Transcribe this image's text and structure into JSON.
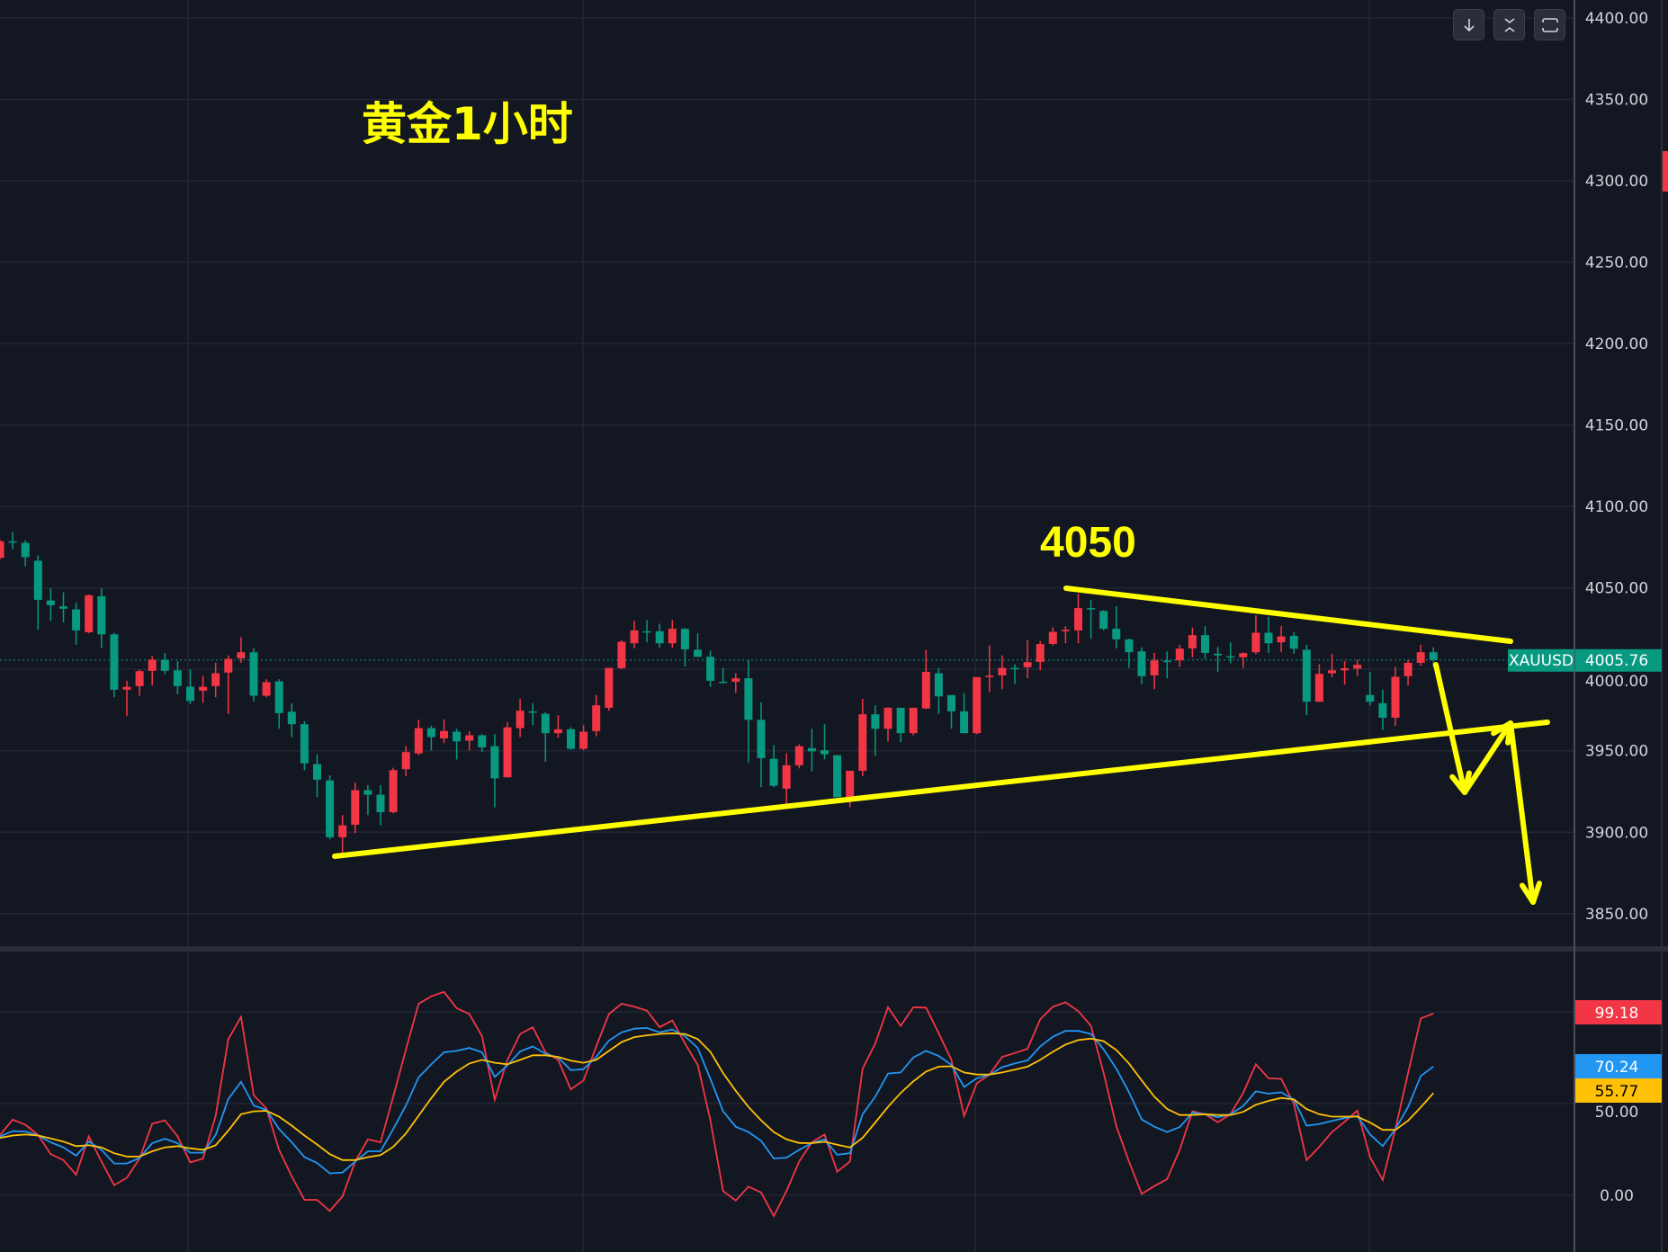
{
  "annotations": {
    "title": "黄金1小时",
    "level_label": "4050",
    "color": "#ffff00"
  },
  "toolbar": {
    "buttons": [
      {
        "icon": "arrow-down-icon"
      },
      {
        "icon": "collapse-vertical-icon"
      },
      {
        "icon": "fullscreen-icon"
      }
    ]
  },
  "colors": {
    "background": "#131722",
    "up": "#f23645",
    "down": "#089981",
    "grid": "#232733",
    "k_line": "#2196f3",
    "d_line": "#ffc107",
    "j_line": "#f23645"
  },
  "chart_data": [
    {
      "type": "candlestick",
      "symbol": "XAUUSD",
      "last_price": "4005.76",
      "ylim": [
        3830,
        4411
      ],
      "y_ticks": [
        "4400.00",
        "4350.00",
        "4300.00",
        "4250.00",
        "4200.00",
        "4150.00",
        "4100.00",
        "4050.00",
        "4000.00",
        "3950.00",
        "3900.00",
        "3850.00"
      ],
      "grid": true,
      "ohlc_fields": [
        "open",
        "high",
        "low",
        "close"
      ],
      "candles": [
        [
          4068.5,
          4079.6,
          4067.6,
          4078.6
        ],
        [
          4078.6,
          4084.2,
          4073.7,
          4078.0
        ],
        [
          4077.7,
          4079.2,
          4063.3,
          4068.9
        ],
        [
          4066.7,
          4070.0,
          4024.3,
          4042.7
        ],
        [
          4042.3,
          4049.7,
          4029.8,
          4039.4
        ],
        [
          4038.7,
          4047.3,
          4028.9,
          4037.2
        ],
        [
          4036.8,
          4040.9,
          4015.1,
          4023.9
        ],
        [
          4022.8,
          4046.0,
          4022.1,
          4045.5
        ],
        [
          4044.9,
          4049.7,
          4013.2,
          4021.5
        ],
        [
          4021.5,
          4022.5,
          3982.9,
          3987.5
        ],
        [
          3987.5,
          3993.0,
          3971.3,
          3989.3
        ],
        [
          3989.7,
          4000.0,
          3983.8,
          3998.9
        ],
        [
          3999.1,
          4008.1,
          3990.2,
          4005.9
        ],
        [
          4005.9,
          4009.9,
          3997.0,
          3999.1
        ],
        [
          3999.4,
          4005.0,
          3984.7,
          3989.7
        ],
        [
          3989.3,
          4000.0,
          3978.6,
          3980.6
        ],
        [
          3986.9,
          3996.1,
          3979.5,
          3989.3
        ],
        [
          3989.7,
          4004.0,
          3982.9,
          3997.6
        ],
        [
          3998.0,
          4008.6,
          3972.7,
          4006.4
        ],
        [
          4006.8,
          4019.7,
          4004.0,
          4010.5
        ],
        [
          4010.5,
          4012.9,
          3980.1,
          3983.8
        ],
        [
          3983.8,
          3993.9,
          3982.9,
          3992.1
        ],
        [
          3992.6,
          3993.9,
          3963.5,
          3973.1
        ],
        [
          3974.0,
          3979.2,
          3958.4,
          3966.3
        ],
        [
          3966.3,
          3968.1,
          3938.1,
          3942.3
        ],
        [
          3941.8,
          3947.9,
          3921.5,
          3932.2
        ],
        [
          3931.8,
          3935.0,
          3895.7,
          3896.9
        ],
        [
          3896.9,
          3910.5,
          3887.1,
          3904.2
        ],
        [
          3904.6,
          3930.4,
          3899.4,
          3925.8
        ],
        [
          3925.8,
          3928.9,
          3910.5,
          3923.0
        ],
        [
          3923.0,
          3928.9,
          3904.2,
          3912.3
        ],
        [
          3912.3,
          3939.6,
          3911.6,
          3938.1
        ],
        [
          3938.7,
          3952.8,
          3934.4,
          3949.2
        ],
        [
          3948.4,
          3969.0,
          3947.3,
          3963.9
        ],
        [
          3963.9,
          3965.4,
          3950.3,
          3958.4
        ],
        [
          3957.6,
          3969.4,
          3954.7,
          3962.1
        ],
        [
          3961.7,
          3963.5,
          3944.7,
          3955.8
        ],
        [
          3956.2,
          3962.1,
          3950.3,
          3959.5
        ],
        [
          3959.5,
          3960.2,
          3949.2,
          3952.1
        ],
        [
          3952.8,
          3960.2,
          3915.3,
          3933.1
        ],
        [
          3933.7,
          3967.6,
          3933.7,
          3964.4
        ],
        [
          3963.9,
          3981.9,
          3958.4,
          3974.6
        ],
        [
          3974.2,
          3979.2,
          3965.7,
          3973.5
        ],
        [
          3972.7,
          3973.7,
          3943.3,
          3960.8
        ],
        [
          3960.8,
          3971.8,
          3958.0,
          3963.2
        ],
        [
          3963.2,
          3964.4,
          3950.6,
          3951.2
        ],
        [
          3951.2,
          3965.7,
          3950.3,
          3961.7
        ],
        [
          3962.1,
          3984.2,
          3958.9,
          3977.9
        ],
        [
          3976.4,
          4000.9,
          3974.6,
          4000.9
        ],
        [
          4000.7,
          4017.9,
          4000.0,
          4016.9
        ],
        [
          4016.0,
          4029.8,
          4012.9,
          4023.9
        ],
        [
          4023.4,
          4030.2,
          4016.6,
          4022.8
        ],
        [
          4023.4,
          4028.0,
          4013.2,
          4016.0
        ],
        [
          4016.0,
          4030.2,
          4013.2,
          4024.9
        ],
        [
          4024.9,
          4025.2,
          4001.8,
          4012.3
        ],
        [
          4012.0,
          4022.1,
          4007.4,
          4007.7
        ],
        [
          4007.7,
          4011.4,
          3989.3,
          3993.0
        ],
        [
          3992.4,
          4000.7,
          3991.5,
          3991.7
        ],
        [
          3992.4,
          3997.6,
          3985.6,
          3994.5
        ],
        [
          3994.5,
          4005.5,
          3942.9,
          3969.0
        ],
        [
          3969.0,
          3979.7,
          3927.6,
          3945.5
        ],
        [
          3945.1,
          3953.4,
          3927.6,
          3928.5
        ],
        [
          3926.7,
          3948.4,
          3917.1,
          3941.1
        ],
        [
          3941.1,
          3953.9,
          3939.2,
          3952.8
        ],
        [
          3951.6,
          3963.5,
          3937.4,
          3949.7
        ],
        [
          3950.3,
          3966.3,
          3944.7,
          3947.9
        ],
        [
          3947.3,
          3947.3,
          3921.5,
          3921.5
        ],
        [
          3921.5,
          3937.7,
          3915.3,
          3937.7
        ],
        [
          3937.7,
          3981.9,
          3934.4,
          3972.4
        ],
        [
          3972.4,
          3977.9,
          3947.0,
          3963.5
        ],
        [
          3963.5,
          3976.8,
          3955.8,
          3976.4
        ],
        [
          3976.4,
          3976.4,
          3955.2,
          3960.8
        ],
        [
          3960.8,
          3976.4,
          3959.5,
          3976.4
        ],
        [
          3976.0,
          4011.8,
          3975.5,
          3998.5
        ],
        [
          3997.6,
          4000.7,
          3972.7,
          3983.4
        ],
        [
          3984.2,
          3984.2,
          3963.5,
          3974.2
        ],
        [
          3974.2,
          3985.3,
          3960.8,
          3960.8
        ],
        [
          3960.8,
          3995.2,
          3960.2,
          3995.2
        ],
        [
          3995.2,
          4014.7,
          3986.0,
          3996.1
        ],
        [
          3996.3,
          4008.6,
          3987.8,
          4000.9
        ],
        [
          4000.9,
          4003.1,
          3991.1,
          4000.5
        ],
        [
          4001.3,
          4017.9,
          3994.5,
          4004.4
        ],
        [
          4004.6,
          4017.3,
          3999.4,
          4015.5
        ],
        [
          4015.6,
          4025.8,
          4014.7,
          4023.0
        ],
        [
          4023.4,
          4026.5,
          4016.0,
          4024.3
        ],
        [
          4023.9,
          4046.4,
          4016.0,
          4037.6
        ],
        [
          4037.6,
          4042.7,
          4018.8,
          4036.8
        ],
        [
          4035.9,
          4036.3,
          4023.9,
          4024.9
        ],
        [
          4024.9,
          4038.7,
          4012.9,
          4018.4
        ],
        [
          4018.4,
          4018.8,
          4000.9,
          4010.5
        ],
        [
          4011.0,
          4013.6,
          3990.8,
          3995.8
        ],
        [
          3996.3,
          4010.1,
          3987.8,
          4005.5
        ],
        [
          4005.3,
          4011.0,
          3994.5,
          4004.8
        ],
        [
          4005.5,
          4015.1,
          4001.6,
          4012.7
        ],
        [
          4012.9,
          4025.6,
          4007.4,
          4021.0
        ],
        [
          4021.0,
          4026.5,
          4006.4,
          4010.1
        ],
        [
          4009.6,
          4013.8,
          3998.5,
          4008.6
        ],
        [
          4008.1,
          4016.6,
          4003.7,
          4007.4
        ],
        [
          4007.4,
          4010.5,
          4000.9,
          4009.9
        ],
        [
          4010.5,
          4033.1,
          4009.2,
          4022.5
        ],
        [
          4022.5,
          4032.2,
          4010.1,
          4016.0
        ],
        [
          4016.6,
          4026.5,
          4010.5,
          4020.2
        ],
        [
          4020.6,
          4022.8,
          4009.6,
          4012.7
        ],
        [
          4012.0,
          4015.1,
          3971.8,
          3980.1
        ],
        [
          3980.1,
          4003.1,
          3980.1,
          3997.2
        ],
        [
          3997.6,
          4009.6,
          3995.2,
          3999.4
        ],
        [
          3999.4,
          4005.0,
          3990.6,
          4000.7
        ],
        [
          4000.4,
          4005.9,
          3995.8,
          4002.8
        ],
        [
          3984.3,
          3998.5,
          3977.9,
          3980.1
        ],
        [
          3979.2,
          3987.5,
          3962.6,
          3970.3
        ],
        [
          3970.3,
          4001.6,
          3965.4,
          3995.4
        ],
        [
          3995.8,
          4005.9,
          3990.2,
          4004.0
        ],
        [
          4004.0,
          4015.1,
          4002.2,
          4010.5
        ],
        [
          4010.5,
          4013.6,
          4001.3,
          4005.76
        ]
      ]
    },
    {
      "type": "line",
      "ylim": [
        -31,
        133
      ],
      "y_ticks": [
        "50.00",
        "0.00"
      ],
      "grid_values": [
        100,
        50,
        0
      ],
      "series": [
        {
          "key": "j",
          "color": "#f23645",
          "last_label": "99.18",
          "values": [
            32.9,
            41.3,
            38.5,
            32.9,
            22.4,
            19.2,
            11.2,
            32.1,
            18.4,
            5.5,
            9.5,
            20.0,
            39.0,
            40.9,
            32.1,
            17.9,
            20.0,
            43.3,
            85.2,
            97.3,
            54.6,
            47.4,
            24.8,
            10.3,
            -2.5,
            -2.5,
            -8.6,
            -0.6,
            18.4,
            30.5,
            28.9,
            53.8,
            79.6,
            104.5,
            108.6,
            111.0,
            102.1,
            98.9,
            86.8,
            52.2,
            73.9,
            88.0,
            91.7,
            78.0,
            73.9,
            57.8,
            62.7,
            81.2,
            98.9,
            104.5,
            102.9,
            100.8,
            91.7,
            95.4,
            82.8,
            71.2,
            40.9,
            2.3,
            -2.9,
            4.7,
            1.5,
            -11.4,
            2.3,
            18.4,
            28.9,
            33.2,
            12.8,
            18.4,
            69.1,
            82.8,
            102.6,
            92.5,
            102.6,
            102.4,
            88.4,
            73.9,
            43.3,
            61.1,
            65.9,
            75.5,
            77.6,
            79.9,
            96.0,
            102.9,
            105.3,
            100.5,
            92.5,
            66.7,
            37.7,
            18.4,
            0.7,
            5.0,
            8.7,
            24.8,
            45.8,
            44.2,
            39.8,
            44.2,
            55.8,
            71.5,
            63.8,
            63.5,
            49.8,
            19.2,
            26.4,
            34.5,
            40.1,
            46.2,
            20.8,
            8.3,
            36.1,
            66.7,
            96.5,
            99.18
          ]
        },
        {
          "key": "k",
          "color": "#2196f3",
          "last_label": "70.24",
          "values": [
            32.1,
            35.0,
            34.8,
            32.6,
            28.9,
            26.1,
            21.6,
            29.3,
            24.8,
            17.3,
            17.3,
            20.3,
            28.4,
            30.8,
            28.4,
            23.2,
            23.2,
            32.9,
            52.5,
            61.9,
            49.0,
            46.6,
            36.1,
            28.9,
            20.8,
            17.6,
            11.9,
            12.4,
            18.4,
            24.0,
            24.0,
            36.1,
            49.0,
            64.3,
            71.5,
            78.0,
            78.8,
            80.4,
            78.0,
            64.6,
            70.9,
            78.5,
            81.2,
            77.2,
            75.1,
            68.3,
            68.8,
            75.5,
            84.4,
            88.9,
            90.9,
            91.3,
            88.9,
            90.5,
            86.8,
            80.4,
            63.5,
            45.8,
            37.4,
            34.5,
            29.7,
            20.0,
            20.5,
            24.8,
            28.4,
            30.5,
            22.1,
            22.9,
            44.2,
            53.8,
            66.4,
            67.0,
            75.2,
            78.8,
            76.0,
            71.2,
            59.1,
            63.8,
            65.7,
            69.9,
            71.9,
            73.6,
            81.2,
            86.5,
            89.7,
            89.7,
            88.0,
            79.6,
            69.1,
            56.2,
            41.4,
            37.4,
            34.5,
            37.2,
            45.0,
            44.2,
            42.5,
            44.2,
            48.7,
            56.7,
            55.4,
            56.2,
            52.2,
            38.0,
            38.8,
            40.6,
            42.1,
            43.3,
            33.2,
            26.8,
            36.1,
            48.2,
            65.1,
            70.24
          ]
        },
        {
          "key": "d",
          "color": "#ffc107",
          "last_label": "55.77",
          "values": [
            31.3,
            32.6,
            33.2,
            32.6,
            31.0,
            29.3,
            26.8,
            27.3,
            26.1,
            22.9,
            21.1,
            21.1,
            24.0,
            26.1,
            26.8,
            25.6,
            24.8,
            27.3,
            35.3,
            44.2,
            45.8,
            46.1,
            42.9,
            38.0,
            32.6,
            27.7,
            22.4,
            19.2,
            19.2,
            20.8,
            21.9,
            26.4,
            33.7,
            43.4,
            53.0,
            61.9,
            67.5,
            71.9,
            73.9,
            72.3,
            71.5,
            73.9,
            76.4,
            76.4,
            75.5,
            73.5,
            72.3,
            73.9,
            78.8,
            83.6,
            86.3,
            87.3,
            88.0,
            88.4,
            88.0,
            85.2,
            78.3,
            66.7,
            57.0,
            48.2,
            40.9,
            34.5,
            30.5,
            28.5,
            28.4,
            29.2,
            27.6,
            26.1,
            31.3,
            39.7,
            48.2,
            55.8,
            62.2,
            67.5,
            70.2,
            70.4,
            67.0,
            65.9,
            65.9,
            67.0,
            68.6,
            70.2,
            73.9,
            78.3,
            82.3,
            84.7,
            85.5,
            84.1,
            79.3,
            71.9,
            62.7,
            53.8,
            47.1,
            43.8,
            43.8,
            44.2,
            43.8,
            43.8,
            45.5,
            49.4,
            51.5,
            53.1,
            52.3,
            47.0,
            44.2,
            42.9,
            42.9,
            42.9,
            39.7,
            35.7,
            35.7,
            40.7,
            48.0,
            55.77
          ]
        }
      ]
    }
  ]
}
